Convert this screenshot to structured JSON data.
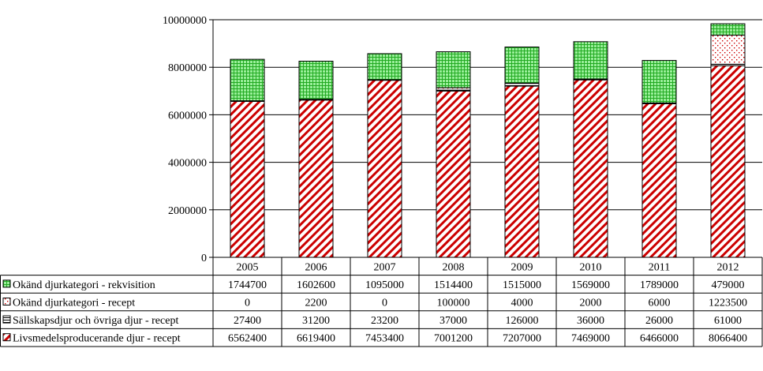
{
  "chart_data": {
    "type": "bar",
    "stacked": true,
    "categories": [
      "2005",
      "2006",
      "2007",
      "2008",
      "2009",
      "2010",
      "2011",
      "2012"
    ],
    "ylim": [
      0,
      10000000
    ],
    "yticks": [
      "0",
      "2000000",
      "4000000",
      "6000000",
      "8000000",
      "10000000"
    ],
    "grid": true,
    "legend_placement": "data table (left)",
    "series": [
      {
        "name": "Livsmedelsproducerande djur - recept",
        "color": "#cc0000",
        "pattern": "diagonal-stripes",
        "values": [
          6562400,
          6619400,
          7453400,
          7001200,
          7207000,
          7469000,
          6466000,
          8066400
        ]
      },
      {
        "name": "Sällskapsdjur och övriga djur - recept",
        "color": "#000000",
        "pattern": "horizontal-lines",
        "values": [
          27400,
          31200,
          23200,
          37000,
          126000,
          36000,
          26000,
          61000
        ]
      },
      {
        "name": "Okänd djurkategori - recept",
        "color": "#cc0000",
        "pattern": "dots",
        "values": [
          0,
          2200,
          0,
          100000,
          4000,
          2000,
          6000,
          1223500
        ]
      },
      {
        "name": "Okänd djurkategori - rekvisition",
        "color": "#33cc33",
        "pattern": "grid",
        "values": [
          1744700,
          1602600,
          1095000,
          1514400,
          1515000,
          1569000,
          1789000,
          479000
        ]
      }
    ],
    "table_rows": [
      {
        "label": "Okänd djurkategori - rekvisition",
        "cells": [
          "1744700",
          "1602600",
          "1095000",
          "1514400",
          "1515000",
          "1569000",
          "1789000",
          "479000"
        ]
      },
      {
        "label": "Okänd djurkategori - recept",
        "cells": [
          "0",
          "2200",
          "0",
          "100000",
          "4000",
          "2000",
          "6000",
          "1223500"
        ]
      },
      {
        "label": "Sällskapsdjur och övriga djur - recept",
        "cells": [
          "27400",
          "31200",
          "23200",
          "37000",
          "126000",
          "36000",
          "26000",
          "61000"
        ]
      },
      {
        "label": "Livsmedelsproducerande djur - recept",
        "cells": [
          "6562400",
          "6619400",
          "7453400",
          "7001200",
          "7207000",
          "7469000",
          "6466000",
          "8066400"
        ]
      }
    ]
  }
}
